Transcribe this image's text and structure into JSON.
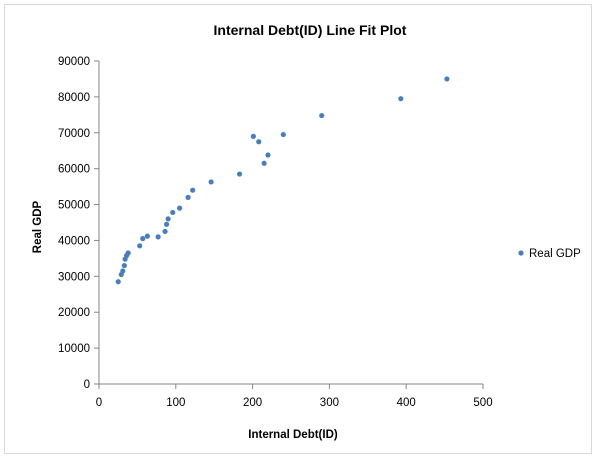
{
  "chart_data": {
    "type": "scatter",
    "title": "Internal Debt(ID) Line Fit  Plot",
    "xlabel": "Internal Debt(ID)",
    "ylabel": "Real GDP",
    "xlim": [
      0,
      500
    ],
    "ylim": [
      0,
      90000
    ],
    "xticks": [
      "0",
      "100",
      "200",
      "300",
      "400",
      "500"
    ],
    "yticks": [
      "0",
      "10000",
      "20000",
      "30000",
      "40000",
      "50000",
      "60000",
      "70000",
      "80000",
      "90000"
    ],
    "grid": false,
    "legend_position": "right",
    "series": [
      {
        "name": "Real GDP",
        "color": "#4a7ebb",
        "points": [
          [
            25,
            28500
          ],
          [
            29,
            30500
          ],
          [
            31,
            31500
          ],
          [
            33,
            33000
          ],
          [
            34,
            34800
          ],
          [
            36,
            35800
          ],
          [
            38,
            36500
          ],
          [
            53,
            38500
          ],
          [
            57,
            40500
          ],
          [
            63,
            41200
          ],
          [
            77,
            41000
          ],
          [
            86,
            42500
          ],
          [
            88,
            44500
          ],
          [
            90,
            46000
          ],
          [
            96,
            47800
          ],
          [
            105,
            49000
          ],
          [
            116,
            52000
          ],
          [
            122,
            54000
          ],
          [
            146,
            56300
          ],
          [
            183,
            58500
          ],
          [
            201,
            69000
          ],
          [
            208,
            67500
          ],
          [
            215,
            61500
          ],
          [
            220,
            63800
          ],
          [
            240,
            69500
          ],
          [
            290,
            74800
          ],
          [
            393,
            79500
          ],
          [
            453,
            85000
          ]
        ]
      }
    ]
  }
}
